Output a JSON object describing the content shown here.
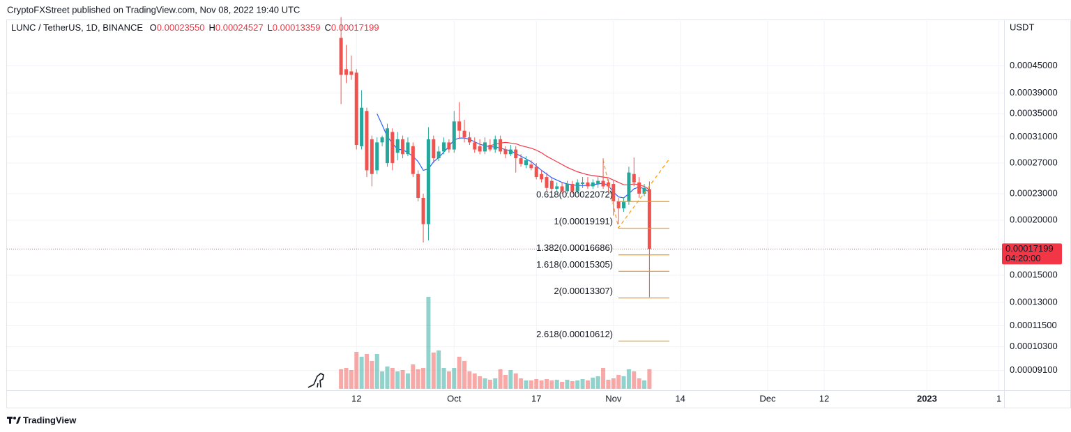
{
  "header": "CryptoFXStreet published on TradingView.com, Nov 08, 2022 19:40 UTC",
  "footer": "TradingView",
  "chart_data": {
    "type": "candlestick",
    "legend": {
      "symbol": "LUNC / TetherUS, 1D, BINANCE",
      "fields": [
        {
          "key": "O",
          "text": "0.00023550"
        },
        {
          "key": "H",
          "text": "0.00024527"
        },
        {
          "key": "L",
          "text": "0.00013359"
        },
        {
          "key": "C",
          "text": "0.00017199"
        }
      ]
    },
    "y_axis_label": "USDT",
    "log_scale": true,
    "grid": true,
    "up_color": "#26a69a",
    "down_color": "#ef5350",
    "x": [
      "2022-09-09",
      "2022-09-10",
      "2022-09-11",
      "2022-09-12",
      "2022-09-13",
      "2022-09-14",
      "2022-09-15",
      "2022-09-16",
      "2022-09-17",
      "2022-09-18",
      "2022-09-19",
      "2022-09-20",
      "2022-09-21",
      "2022-09-22",
      "2022-09-23",
      "2022-09-24",
      "2022-09-25",
      "2022-09-26",
      "2022-09-27",
      "2022-09-28",
      "2022-09-29",
      "2022-09-30",
      "2022-10-01",
      "2022-10-02",
      "2022-10-03",
      "2022-10-04",
      "2022-10-05",
      "2022-10-06",
      "2022-10-07",
      "2022-10-08",
      "2022-10-09",
      "2022-10-10",
      "2022-10-11",
      "2022-10-12",
      "2022-10-13",
      "2022-10-14",
      "2022-10-15",
      "2022-10-16",
      "2022-10-17",
      "2022-10-18",
      "2022-10-19",
      "2022-10-20",
      "2022-10-21",
      "2022-10-22",
      "2022-10-23",
      "2022-10-24",
      "2022-10-25",
      "2022-10-26",
      "2022-10-27",
      "2022-10-28",
      "2022-10-29",
      "2022-10-30",
      "2022-10-31",
      "2022-11-01",
      "2022-11-02",
      "2022-11-03",
      "2022-11-04",
      "2022-11-05",
      "2022-11-06",
      "2022-11-07",
      "2022-11-08"
    ],
    "open": [
      0.000521,
      0.000442,
      0.000437,
      0.000434,
      0.000295,
      0.000355,
      0.000306,
      0.00026,
      0.000301,
      0.00027,
      0.000318,
      0.000285,
      0.000306,
      0.000283,
      0.000295,
      0.000255,
      0.000225,
      0.000196,
      0.000306,
      0.000277,
      0.000287,
      0.000301,
      0.00029,
      0.000336,
      0.00032,
      0.000309,
      0.000301,
      0.000295,
      0.000287,
      0.000297,
      0.00029,
      0.000306,
      0.00029,
      0.000283,
      0.00029,
      0.000277,
      0.000267,
      0.000268,
      0.000265,
      0.000255,
      0.000251,
      0.000246,
      0.000236,
      0.000239,
      0.000233,
      0.000242,
      0.000233,
      0.000242,
      0.000244,
      0.000239,
      0.000242,
      0.000246,
      0.000244,
      0.000242,
      0.000221,
      0.000213,
      0.000221,
      0.000255,
      0.000244,
      0.00023,
      0.0002355
    ],
    "high": [
      0.000581,
      0.000502,
      0.000475,
      0.000442,
      0.000396,
      0.000361,
      0.000312,
      0.000309,
      0.000312,
      0.000332,
      0.000324,
      0.000318,
      0.000312,
      0.000309,
      0.000301,
      0.00026,
      0.00023,
      0.000326,
      0.000312,
      0.000295,
      0.000309,
      0.000306,
      0.000355,
      0.000372,
      0.000339,
      0.000318,
      0.000309,
      0.000306,
      0.000309,
      0.000306,
      0.000312,
      0.000312,
      0.000295,
      0.000297,
      0.000295,
      0.000283,
      0.00028,
      0.000274,
      0.00027,
      0.00026,
      0.000257,
      0.000251,
      0.000244,
      0.000244,
      0.000246,
      0.000246,
      0.000248,
      0.000251,
      0.000251,
      0.000248,
      0.000251,
      0.000277,
      0.000248,
      0.000246,
      0.000225,
      0.000225,
      0.000265,
      0.000278,
      0.000251,
      0.000242,
      0.00024527
    ],
    "low": [
      0.000368,
      0.000411,
      0.000418,
      0.00029,
      0.00029,
      0.000251,
      0.000239,
      0.000255,
      0.000295,
      0.000265,
      0.00026,
      0.000274,
      0.000277,
      0.00028,
      0.000251,
      0.000221,
      0.000178,
      0.00018,
      0.00027,
      0.000273,
      0.000283,
      0.000285,
      0.000285,
      0.000306,
      0.000301,
      0.000297,
      0.000285,
      0.000283,
      0.000283,
      0.000287,
      0.000285,
      0.000283,
      0.000277,
      0.00028,
      0.000257,
      0.000265,
      0.000263,
      0.00026,
      0.000248,
      0.000244,
      0.000233,
      0.00023,
      0.000233,
      0.00023,
      0.00023,
      0.00023,
      0.00023,
      0.000237,
      0.000236,
      0.000236,
      0.000237,
      0.000236,
      0.000233,
      0.000205,
      0.000196,
      0.000209,
      0.000217,
      0.000239,
      0.000225,
      0.000227,
      0.00013359
    ],
    "close": [
      0.000429,
      0.000429,
      0.000429,
      0.000297,
      0.000361,
      0.00026,
      0.000255,
      0.000301,
      0.000309,
      0.000324,
      0.00027,
      0.000306,
      0.000283,
      0.000301,
      0.000255,
      0.000225,
      0.000196,
      0.000306,
      0.000277,
      0.000287,
      0.000301,
      0.00029,
      0.000336,
      0.00032,
      0.000309,
      0.000301,
      0.00029,
      0.000287,
      0.000301,
      0.00029,
      0.000306,
      0.000287,
      0.000283,
      0.00029,
      0.000277,
      0.000269,
      0.000274,
      0.000263,
      0.000251,
      0.000248,
      0.000237,
      0.000236,
      0.000239,
      0.000233,
      0.000242,
      0.000233,
      0.000244,
      0.000244,
      0.000239,
      0.000244,
      0.000246,
      0.000239,
      0.000239,
      0.000221,
      0.000213,
      0.000221,
      0.000257,
      0.000244,
      0.00023,
      0.000237,
      0.00017199
    ],
    "volume": [
      28,
      30,
      27,
      53,
      46,
      50,
      40,
      50,
      25,
      32,
      30,
      25,
      27,
      22,
      35,
      28,
      30,
      132,
      52,
      55,
      30,
      25,
      30,
      46,
      40,
      25,
      22,
      18,
      15,
      13,
      15,
      28,
      20,
      27,
      22,
      15,
      12,
      12,
      14,
      12,
      14,
      12,
      13,
      10,
      13,
      11,
      12,
      14,
      12,
      16,
      18,
      30,
      13,
      15,
      20,
      18,
      28,
      25,
      15,
      12,
      28
    ],
    "moving_averages": [
      {
        "color": "#2962ff",
        "values": [
          null,
          null,
          null,
          null,
          null,
          null,
          null,
          0.00035,
          0.00033,
          0.00031,
          0.0003,
          0.00029,
          0.00029,
          0.000285,
          0.00028,
          0.000272,
          0.00026,
          0.000262,
          0.000272,
          0.000278,
          0.000286,
          0.000295,
          0.000305,
          0.000308,
          0.000308,
          0.000306,
          0.000302,
          0.000298,
          0.000296,
          0.000294,
          0.000294,
          0.000292,
          0.00029,
          0.000288,
          0.000284,
          0.00028,
          0.000276,
          0.000272,
          0.000266,
          0.00026,
          0.000255,
          0.00025,
          0.000247,
          0.000244,
          0.000242,
          0.000241,
          0.00024,
          0.00024,
          0.00024,
          0.000241,
          0.000242,
          0.000243,
          0.00024,
          0.000232,
          0.000226,
          0.000225,
          0.00023,
          0.000236,
          0.000238,
          0.000236,
          0.000232
        ]
      },
      {
        "color": "#f23645",
        "values": [
          null,
          null,
          null,
          null,
          null,
          null,
          null,
          null,
          null,
          null,
          null,
          null,
          null,
          null,
          null,
          null,
          null,
          null,
          null,
          null,
          null,
          null,
          null,
          null,
          null,
          null,
          null,
          null,
          null,
          0.000296,
          0.000298,
          0.0003,
          0.000301,
          0.0003,
          0.000299,
          0.000296,
          0.000294,
          0.000292,
          0.000289,
          0.000285,
          0.00028,
          0.000276,
          0.000272,
          0.000268,
          0.000264,
          0.000261,
          0.000258,
          0.000256,
          0.000254,
          0.000253,
          0.000252,
          0.000251,
          0.00025,
          0.000247,
          0.000244,
          0.000241,
          0.000241,
          0.000242,
          0.000241,
          0.000239,
          0.000235
        ]
      }
    ],
    "fib_color": "#ff9800",
    "fib_levels": [
      {
        "label": "0.618(0.00022072)",
        "value": 0.00022072
      },
      {
        "label": "1(0.00019191)",
        "value": 0.00019191
      },
      {
        "label": "1.382(0.00016686)",
        "value": 0.00016686
      },
      {
        "label": "1.618(0.00015305)",
        "value": 0.00015305
      },
      {
        "label": "2(0.00013307)",
        "value": 0.00013307
      },
      {
        "label": "2.618(0.00010612)",
        "value": 0.00010612
      }
    ],
    "countdown": "04:20:00",
    "xlim": [
      "2022-07-06",
      "2023-01-16"
    ],
    "xticks": [
      {
        "value": "2022-09-12",
        "label": "12"
      },
      {
        "value": "2022-10-01",
        "label": "Oct"
      },
      {
        "value": "2022-10-17",
        "label": "17"
      },
      {
        "value": "2022-11-01",
        "label": "Nov"
      },
      {
        "value": "2022-11-14",
        "label": "14"
      },
      {
        "value": "2022-12-01",
        "label": "Dec"
      },
      {
        "value": "2022-12-12",
        "label": "12"
      },
      {
        "value": "2023-01-01",
        "label": "2023"
      },
      {
        "value": "2023-01-15",
        "label": "1"
      }
    ],
    "ylim": [
      8.2e-05,
      0.00058
    ],
    "yticks": [
      {
        "value": 0.00045,
        "label": "0.00045000"
      },
      {
        "value": 0.00039,
        "label": "0.00039000"
      },
      {
        "value": 0.00035,
        "label": "0.00035000"
      },
      {
        "value": 0.00031,
        "label": "0.00031000"
      },
      {
        "value": 0.00027,
        "label": "0.00027000"
      },
      {
        "value": 0.00023,
        "label": "0.00023000"
      },
      {
        "value": 0.0002,
        "label": "0.00020000"
      },
      {
        "value": 0.00015,
        "label": "0.00015000"
      },
      {
        "value": 0.00013,
        "label": "0.00013000"
      },
      {
        "value": 0.000115,
        "label": "0.00011500"
      },
      {
        "value": 0.000103,
        "label": "0.00010300"
      },
      {
        "value": 9.1e-05,
        "label": "0.00009100"
      }
    ]
  }
}
